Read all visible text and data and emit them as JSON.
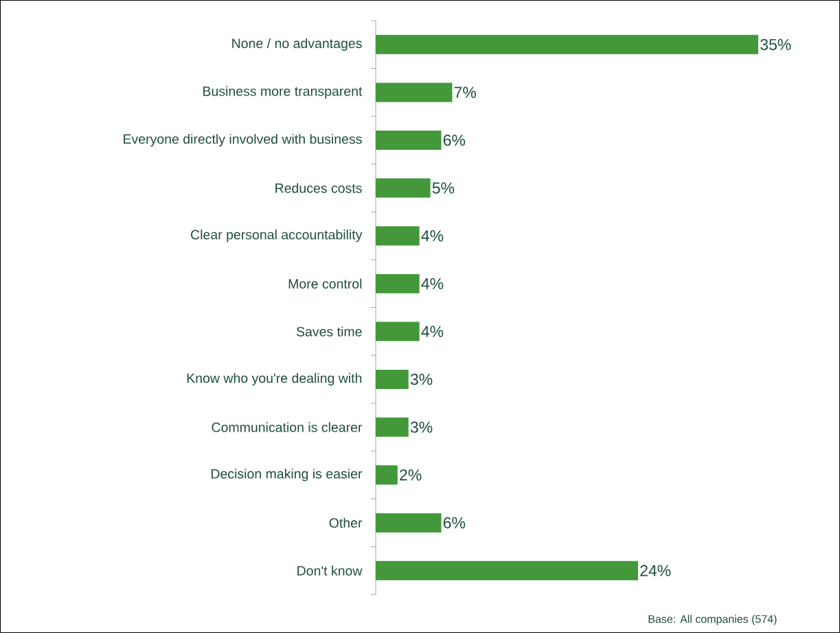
{
  "chart_data": {
    "type": "bar",
    "orientation": "horizontal",
    "color": "#43983a",
    "categories": [
      "None / no advantages",
      "Business more transparent",
      "Everyone directly involved with business",
      "Reduces costs",
      "Clear personal accountability",
      "More control",
      "Saves time",
      "Know who you're dealing with",
      "Communication is clearer",
      "Decision making is easier",
      "Other",
      "Don't know"
    ],
    "values": [
      35,
      7,
      6,
      5,
      4,
      4,
      4,
      3,
      3,
      2,
      6,
      24
    ],
    "value_labels": [
      "35%",
      "7%",
      "6%",
      "5%",
      "4%",
      "4%",
      "4%",
      "3%",
      "3%",
      "2%",
      "6%",
      "24%"
    ],
    "annotations": [
      "Base: All companies (574)"
    ]
  }
}
